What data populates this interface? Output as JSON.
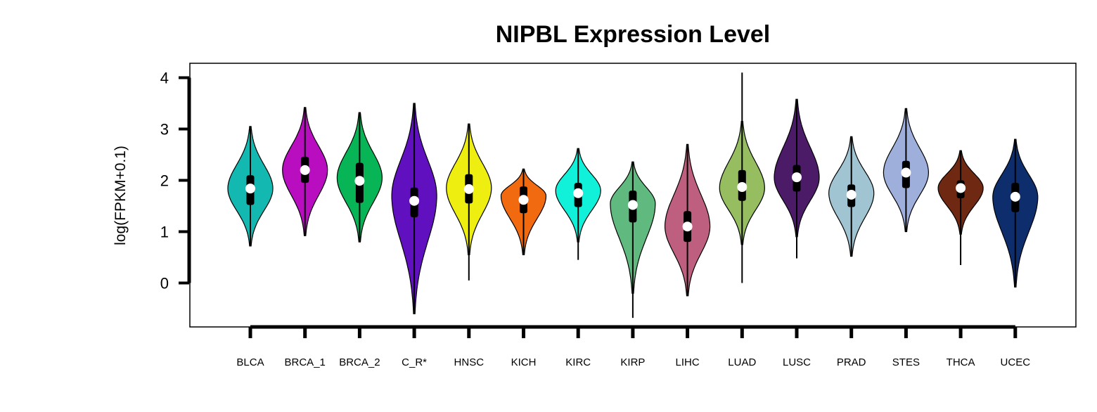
{
  "chart_data": {
    "type": "violin",
    "title": "NIPBL Expression Level",
    "xlabel": "",
    "ylabel": "log(FPKM+0.1)",
    "ylim": [
      -0.85,
      4.3
    ],
    "yticks": [
      0,
      1,
      2,
      3,
      4
    ],
    "legend": "none",
    "grid": false,
    "categories": [
      "BLCA",
      "BRCA_1",
      "BRCA_2",
      "C_R*",
      "HNSC",
      "KICH",
      "KIRC",
      "KIRP",
      "LIHC",
      "LUAD",
      "LUSC",
      "PRAD",
      "STES",
      "THCA",
      "UCEC"
    ],
    "series": [
      {
        "category": "BLCA",
        "color": "#13B8B0",
        "min": 0.72,
        "max": 3.05,
        "q1": 1.52,
        "median": 1.84,
        "q3": 2.1,
        "violin_min": 0.72,
        "violin_max": 3.05,
        "density_peak": 1.84
      },
      {
        "category": "BRCA_1",
        "color": "#B80EC0",
        "min": 0.92,
        "max": 3.42,
        "q1": 1.95,
        "median": 2.2,
        "q3": 2.46,
        "violin_min": 0.92,
        "violin_max": 3.42,
        "density_peak": 2.2
      },
      {
        "category": "BRCA_2",
        "color": "#07B556",
        "min": 0.8,
        "max": 3.32,
        "q1": 1.56,
        "median": 1.99,
        "q3": 2.34,
        "violin_min": 0.8,
        "violin_max": 3.32,
        "density_peak": 2.05
      },
      {
        "category": "C_R*",
        "color": "#6110C0",
        "min": -0.6,
        "max": 3.5,
        "q1": 1.28,
        "median": 1.6,
        "q3": 1.86,
        "violin_min": -0.6,
        "violin_max": 3.5,
        "density_peak": 1.7
      },
      {
        "category": "HNSC",
        "color": "#EEEE10",
        "min": 0.05,
        "max": 3.1,
        "q1": 1.55,
        "median": 1.83,
        "q3": 2.12,
        "violin_min": 0.55,
        "violin_max": 3.1,
        "density_peak": 1.85
      },
      {
        "category": "KICH",
        "color": "#F16A10",
        "min": 0.55,
        "max": 2.22,
        "q1": 1.36,
        "median": 1.62,
        "q3": 1.88,
        "violin_min": 0.55,
        "violin_max": 2.22,
        "density_peak": 1.7
      },
      {
        "category": "KIRC",
        "color": "#11F0D8",
        "min": 0.45,
        "max": 2.62,
        "q1": 1.48,
        "median": 1.75,
        "q3": 1.95,
        "violin_min": 0.8,
        "violin_max": 2.62,
        "density_peak": 1.8
      },
      {
        "category": "KIRP",
        "color": "#60BA80",
        "min": -0.68,
        "max": 2.36,
        "q1": 1.18,
        "median": 1.52,
        "q3": 1.8,
        "violin_min": -0.2,
        "violin_max": 2.36,
        "density_peak": 1.55
      },
      {
        "category": "LIHC",
        "color": "#BF5F80",
        "min": -0.25,
        "max": 2.7,
        "q1": 0.8,
        "median": 1.1,
        "q3": 1.4,
        "violin_min": -0.25,
        "violin_max": 2.7,
        "density_peak": 1.1
      },
      {
        "category": "LUAD",
        "color": "#96BE60",
        "min": 0.0,
        "max": 4.1,
        "q1": 1.6,
        "median": 1.87,
        "q3": 2.2,
        "violin_min": 0.75,
        "violin_max": 3.15,
        "density_peak": 1.85
      },
      {
        "category": "LUSC",
        "color": "#4B1B68",
        "min": 0.48,
        "max": 3.58,
        "q1": 1.78,
        "median": 2.06,
        "q3": 2.3,
        "violin_min": 0.9,
        "violin_max": 3.58,
        "density_peak": 2.05
      },
      {
        "category": "PRAD",
        "color": "#A0C4D2",
        "min": 0.52,
        "max": 2.85,
        "q1": 1.48,
        "median": 1.72,
        "q3": 1.92,
        "violin_min": 0.52,
        "violin_max": 2.85,
        "density_peak": 1.75
      },
      {
        "category": "STES",
        "color": "#9FAFDC",
        "min": 1.0,
        "max": 3.4,
        "q1": 1.85,
        "median": 2.15,
        "q3": 2.38,
        "violin_min": 1.0,
        "violin_max": 3.4,
        "density_peak": 2.15
      },
      {
        "category": "THCA",
        "color": "#6F2811",
        "min": 0.35,
        "max": 2.58,
        "q1": 1.65,
        "median": 1.85,
        "q3": 2.0,
        "violin_min": 0.95,
        "violin_max": 2.58,
        "density_peak": 1.85
      },
      {
        "category": "UCEC",
        "color": "#0D2D6C",
        "min": -0.08,
        "max": 2.8,
        "q1": 1.38,
        "median": 1.68,
        "q3": 1.95,
        "violin_min": -0.08,
        "violin_max": 2.8,
        "density_peak": 1.68
      }
    ]
  }
}
